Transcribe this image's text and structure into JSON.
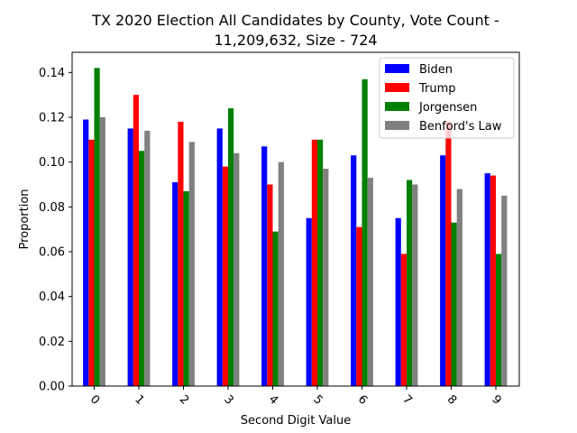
{
  "chart_data": {
    "type": "bar",
    "title_lines": [
      "TX 2020 Election All Candidates by County, Vote Count -",
      "11,209,632, Size - 724"
    ],
    "xlabel": "Second Digit Value",
    "ylabel": "Proportion",
    "categories": [
      "0",
      "1",
      "2",
      "3",
      "4",
      "5",
      "6",
      "7",
      "8",
      "9"
    ],
    "ylim": [
      0,
      0.149
    ],
    "yticks": [
      0.0,
      0.02,
      0.04,
      0.06,
      0.08,
      0.1,
      0.12,
      0.14
    ],
    "ytick_labels": [
      "0.00",
      "0.02",
      "0.04",
      "0.06",
      "0.08",
      "0.10",
      "0.12",
      "0.14"
    ],
    "legend_position": "top-right",
    "grid": false,
    "series": [
      {
        "name": "Biden",
        "color": "#0000ff",
        "values": [
          0.119,
          0.115,
          0.091,
          0.115,
          0.107,
          0.075,
          0.103,
          0.075,
          0.103,
          0.095
        ]
      },
      {
        "name": "Trump",
        "color": "#ff0000",
        "values": [
          0.11,
          0.13,
          0.118,
          0.098,
          0.09,
          0.11,
          0.071,
          0.059,
          0.118,
          0.094
        ]
      },
      {
        "name": "Jorgensen",
        "color": "#008000",
        "values": [
          0.142,
          0.105,
          0.087,
          0.124,
          0.069,
          0.11,
          0.137,
          0.092,
          0.073,
          0.059
        ]
      },
      {
        "name": "Benford's Law",
        "color": "#808080",
        "values": [
          0.12,
          0.114,
          0.109,
          0.104,
          0.1,
          0.097,
          0.093,
          0.09,
          0.088,
          0.085
        ]
      }
    ]
  }
}
